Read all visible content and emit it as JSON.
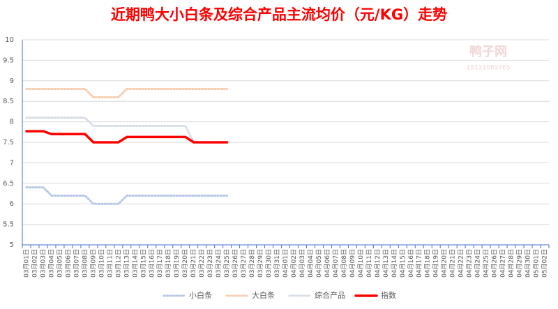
{
  "chart_data": {
    "type": "line",
    "title": "近期鸭大小白条及综合产品主流均价（元/KG）走势",
    "watermark": "鸭子网",
    "watermark_phone": "15131089765",
    "categories": [
      "03月01日",
      "03月02日",
      "03月03日",
      "03月04日",
      "03月05日",
      "03月06日",
      "03月07日",
      "03月08日",
      "03月09日",
      "03月10日",
      "03月11日",
      "03月12日",
      "03月13日",
      "03月14日",
      "03月15日",
      "03月16日",
      "03月17日",
      "03月18日",
      "03月19日",
      "03月20日",
      "03月21日",
      "03月22日",
      "03月23日",
      "03月24日",
      "03月25日",
      "03月26日",
      "03月27日",
      "03月28日",
      "03月29日",
      "03月30日",
      "03月31日",
      "04月01日",
      "04月02日",
      "04月03日",
      "04月04日",
      "04月05日",
      "04月06日",
      "04月07日",
      "04月08日",
      "04月09日",
      "04月10日",
      "04月11日",
      "04月12日",
      "04月13日",
      "04月14日",
      "04月15日",
      "04月16日",
      "04月17日",
      "04月18日",
      "04月19日",
      "04月20日",
      "04月21日",
      "04月22日",
      "04月23日",
      "04月24日",
      "04月25日",
      "04月26日",
      "04月27日",
      "04月28日",
      "04月29日",
      "04月30日",
      "05月01日",
      "05月02日"
    ],
    "series": [
      {
        "name": "小白条",
        "color": "#b4c7e7",
        "style": "dotted",
        "values": [
          6.4,
          6.4,
          6.4,
          6.2,
          6.2,
          6.2,
          6.2,
          6.2,
          6.0,
          6.0,
          6.0,
          6.0,
          6.2,
          6.2,
          6.2,
          6.2,
          6.2,
          6.2,
          6.2,
          6.2,
          6.2,
          6.2,
          6.2,
          6.2,
          6.2,
          null,
          null,
          null,
          null,
          null,
          null,
          null,
          null,
          null,
          null,
          null,
          null,
          null,
          null,
          null,
          null,
          null,
          null,
          null,
          null,
          null,
          null,
          null,
          null,
          null,
          null,
          null,
          null,
          null,
          null,
          null,
          null,
          null,
          null,
          null,
          null,
          null,
          null
        ]
      },
      {
        "name": "大白条",
        "color": "#f8cbad",
        "style": "dotted",
        "values": [
          8.8,
          8.8,
          8.8,
          8.8,
          8.8,
          8.8,
          8.8,
          8.8,
          8.6,
          8.6,
          8.6,
          8.6,
          8.8,
          8.8,
          8.8,
          8.8,
          8.8,
          8.8,
          8.8,
          8.8,
          8.8,
          8.8,
          8.8,
          8.8,
          8.8,
          null,
          null,
          null,
          null,
          null,
          null,
          null,
          null,
          null,
          null,
          null,
          null,
          null,
          null,
          null,
          null,
          null,
          null,
          null,
          null,
          null,
          null,
          null,
          null,
          null,
          null,
          null,
          null,
          null,
          null,
          null,
          null,
          null,
          null,
          null,
          null,
          null,
          null
        ]
      },
      {
        "name": "综合产品",
        "color": "#d6dce5",
        "style": "dotted",
        "values": [
          8.1,
          8.1,
          8.1,
          8.1,
          8.1,
          8.1,
          8.1,
          8.1,
          7.9,
          7.9,
          7.9,
          7.9,
          7.9,
          7.9,
          7.9,
          7.9,
          7.9,
          7.9,
          7.9,
          7.9,
          7.5,
          7.5,
          7.5,
          7.5,
          7.5,
          null,
          null,
          null,
          null,
          null,
          null,
          null,
          null,
          null,
          null,
          null,
          null,
          null,
          null,
          null,
          null,
          null,
          null,
          null,
          null,
          null,
          null,
          null,
          null,
          null,
          null,
          null,
          null,
          null,
          null,
          null,
          null,
          null,
          null,
          null,
          null,
          null,
          null
        ]
      },
      {
        "name": "指数",
        "color": "#ff0000",
        "style": "solid",
        "values": [
          7.77,
          7.77,
          7.77,
          7.7,
          7.7,
          7.7,
          7.7,
          7.7,
          7.5,
          7.5,
          7.5,
          7.5,
          7.63,
          7.63,
          7.63,
          7.63,
          7.63,
          7.63,
          7.63,
          7.63,
          7.5,
          7.5,
          7.5,
          7.5,
          7.5,
          null,
          null,
          null,
          null,
          null,
          null,
          null,
          null,
          null,
          null,
          null,
          null,
          null,
          null,
          null,
          null,
          null,
          null,
          null,
          null,
          null,
          null,
          null,
          null,
          null,
          null,
          null,
          null,
          null,
          null,
          null,
          null,
          null,
          null,
          null,
          null,
          null,
          null
        ]
      }
    ],
    "ylim": [
      5,
      10
    ],
    "yticks": [
      5,
      5.5,
      6,
      6.5,
      7,
      7.5,
      8,
      8.5,
      9,
      9.5,
      10
    ],
    "grid": true
  }
}
